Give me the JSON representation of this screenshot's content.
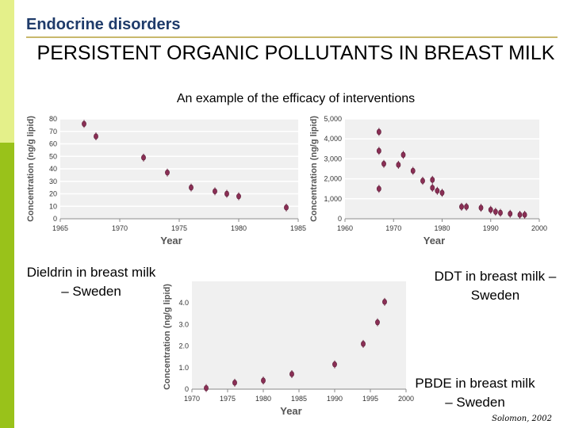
{
  "slide": {
    "section": "Endocrine disorders",
    "title": "PERSISTENT ORGANIC POLLUTANTS IN BREAST MILK",
    "subtitle": "An example of the efficacy of interventions",
    "credit": "Solomon, 2002",
    "accent_colors": [
      "#e4f08a",
      "#99c21a"
    ]
  },
  "chart_data": [
    {
      "type": "scatter",
      "caption": "Dieldrin in breast milk – Sweden",
      "xlabel": "Year",
      "ylabel": "Concentration (ng/g lipid)",
      "xlim": [
        1965,
        1985
      ],
      "ylim": [
        0,
        80
      ],
      "xticks": [
        1965,
        1970,
        1975,
        1980,
        1985
      ],
      "yticks": [
        0,
        10,
        20,
        30,
        40,
        50,
        60,
        70,
        80
      ],
      "ytick_labels": [
        "0",
        "10",
        "20",
        "30",
        "40",
        "50",
        "60",
        "70",
        "80"
      ],
      "grid": "horizontal",
      "points": [
        [
          1967,
          76
        ],
        [
          1968,
          66
        ],
        [
          1972,
          49
        ],
        [
          1974,
          37
        ],
        [
          1976,
          25
        ],
        [
          1978,
          22
        ],
        [
          1979,
          20
        ],
        [
          1980,
          18
        ],
        [
          1984,
          9
        ]
      ]
    },
    {
      "type": "scatter",
      "caption": "DDT in breast milk – Sweden",
      "xlabel": "Year",
      "ylabel": "Concentration (ng/g lipid)",
      "xlim": [
        1960,
        2000
      ],
      "ylim": [
        0,
        5000
      ],
      "xticks": [
        1960,
        1970,
        1980,
        1990,
        2000
      ],
      "yticks": [
        0,
        1000,
        2000,
        3000,
        4000,
        5000
      ],
      "ytick_labels": [
        "0",
        "1,000",
        "2,000",
        "3,000",
        "4,000",
        "5,000"
      ],
      "grid": "horizontal",
      "points": [
        [
          1967,
          4350
        ],
        [
          1967,
          3400
        ],
        [
          1967,
          1500
        ],
        [
          1968,
          2750
        ],
        [
          1971,
          2700
        ],
        [
          1972,
          3200
        ],
        [
          1974,
          2400
        ],
        [
          1976,
          1900
        ],
        [
          1978,
          1950
        ],
        [
          1978,
          1550
        ],
        [
          1979,
          1400
        ],
        [
          1980,
          1300
        ],
        [
          1984,
          600
        ],
        [
          1985,
          600
        ],
        [
          1988,
          550
        ],
        [
          1990,
          450
        ],
        [
          1991,
          350
        ],
        [
          1992,
          300
        ],
        [
          1994,
          250
        ],
        [
          1996,
          200
        ],
        [
          1997,
          200
        ]
      ]
    },
    {
      "type": "scatter",
      "caption": "PBDE in breast milk – Sweden",
      "xlabel": "Year",
      "ylabel": "Concentration (ng/g lipid)",
      "xlim": [
        1970,
        2000
      ],
      "ylim": [
        0,
        5
      ],
      "xticks": [
        1970,
        1975,
        1980,
        1985,
        1990,
        1995,
        2000
      ],
      "yticks": [
        0,
        1,
        2,
        3,
        4
      ],
      "ytick_labels": [
        "0",
        "1.0",
        "2.0",
        "3.0",
        "4.0"
      ],
      "grid": "none",
      "points": [
        [
          1972,
          0.05
        ],
        [
          1976,
          0.3
        ],
        [
          1980,
          0.4
        ],
        [
          1984,
          0.7
        ],
        [
          1990,
          1.15
        ],
        [
          1994,
          2.1
        ],
        [
          1996,
          3.1
        ],
        [
          1997,
          4.05
        ]
      ]
    }
  ]
}
